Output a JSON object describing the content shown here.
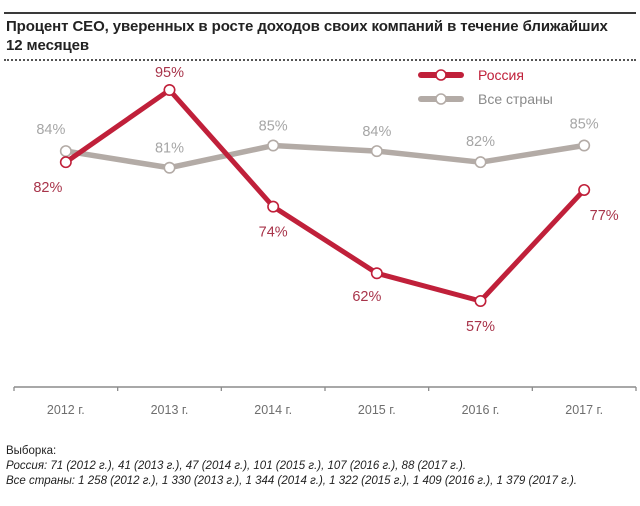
{
  "chart_data": {
    "type": "line",
    "title": "Процент CEO, уверенных в росте доходов своих компаний в течение ближайших 12 месяцев",
    "xlabel": "",
    "ylabel": "",
    "categories": [
      "2012 г.",
      "2013 г.",
      "2014 г.",
      "2015 г.",
      "2016 г.",
      "2017 г."
    ],
    "ylim": [
      50,
      100
    ],
    "grid": false,
    "legend_position": "top-right",
    "series": [
      {
        "name": "Россия",
        "color": "#c0203a",
        "values": [
          82,
          95,
          74,
          62,
          57,
          77
        ],
        "labels": [
          "82%",
          "95%",
          "74%",
          "62%",
          "57%",
          "77%"
        ],
        "label_color": "#a8344a"
      },
      {
        "name": "Все страны",
        "color": "#b3aba6",
        "values": [
          84,
          81,
          85,
          84,
          82,
          85
        ],
        "labels": [
          "84%",
          "81%",
          "85%",
          "84%",
          "82%",
          "85%"
        ],
        "label_color": "#a6a6a6"
      }
    ]
  },
  "notes": {
    "heading": "Выборка:",
    "russia": "Россия: 71 (2012 г.), 41 (2013 г.), 47 (2014 г.), 101 (2015 г.), 107 (2016 г.), 88 (2017 г.).",
    "all": "Все страны: 1 258 (2012 г.), 1 330 (2013 г.), 1 344 (2014 г.), 1 322 (2015 г.), 1 409 (2016 г.), 1 379 (2017 г.)."
  }
}
